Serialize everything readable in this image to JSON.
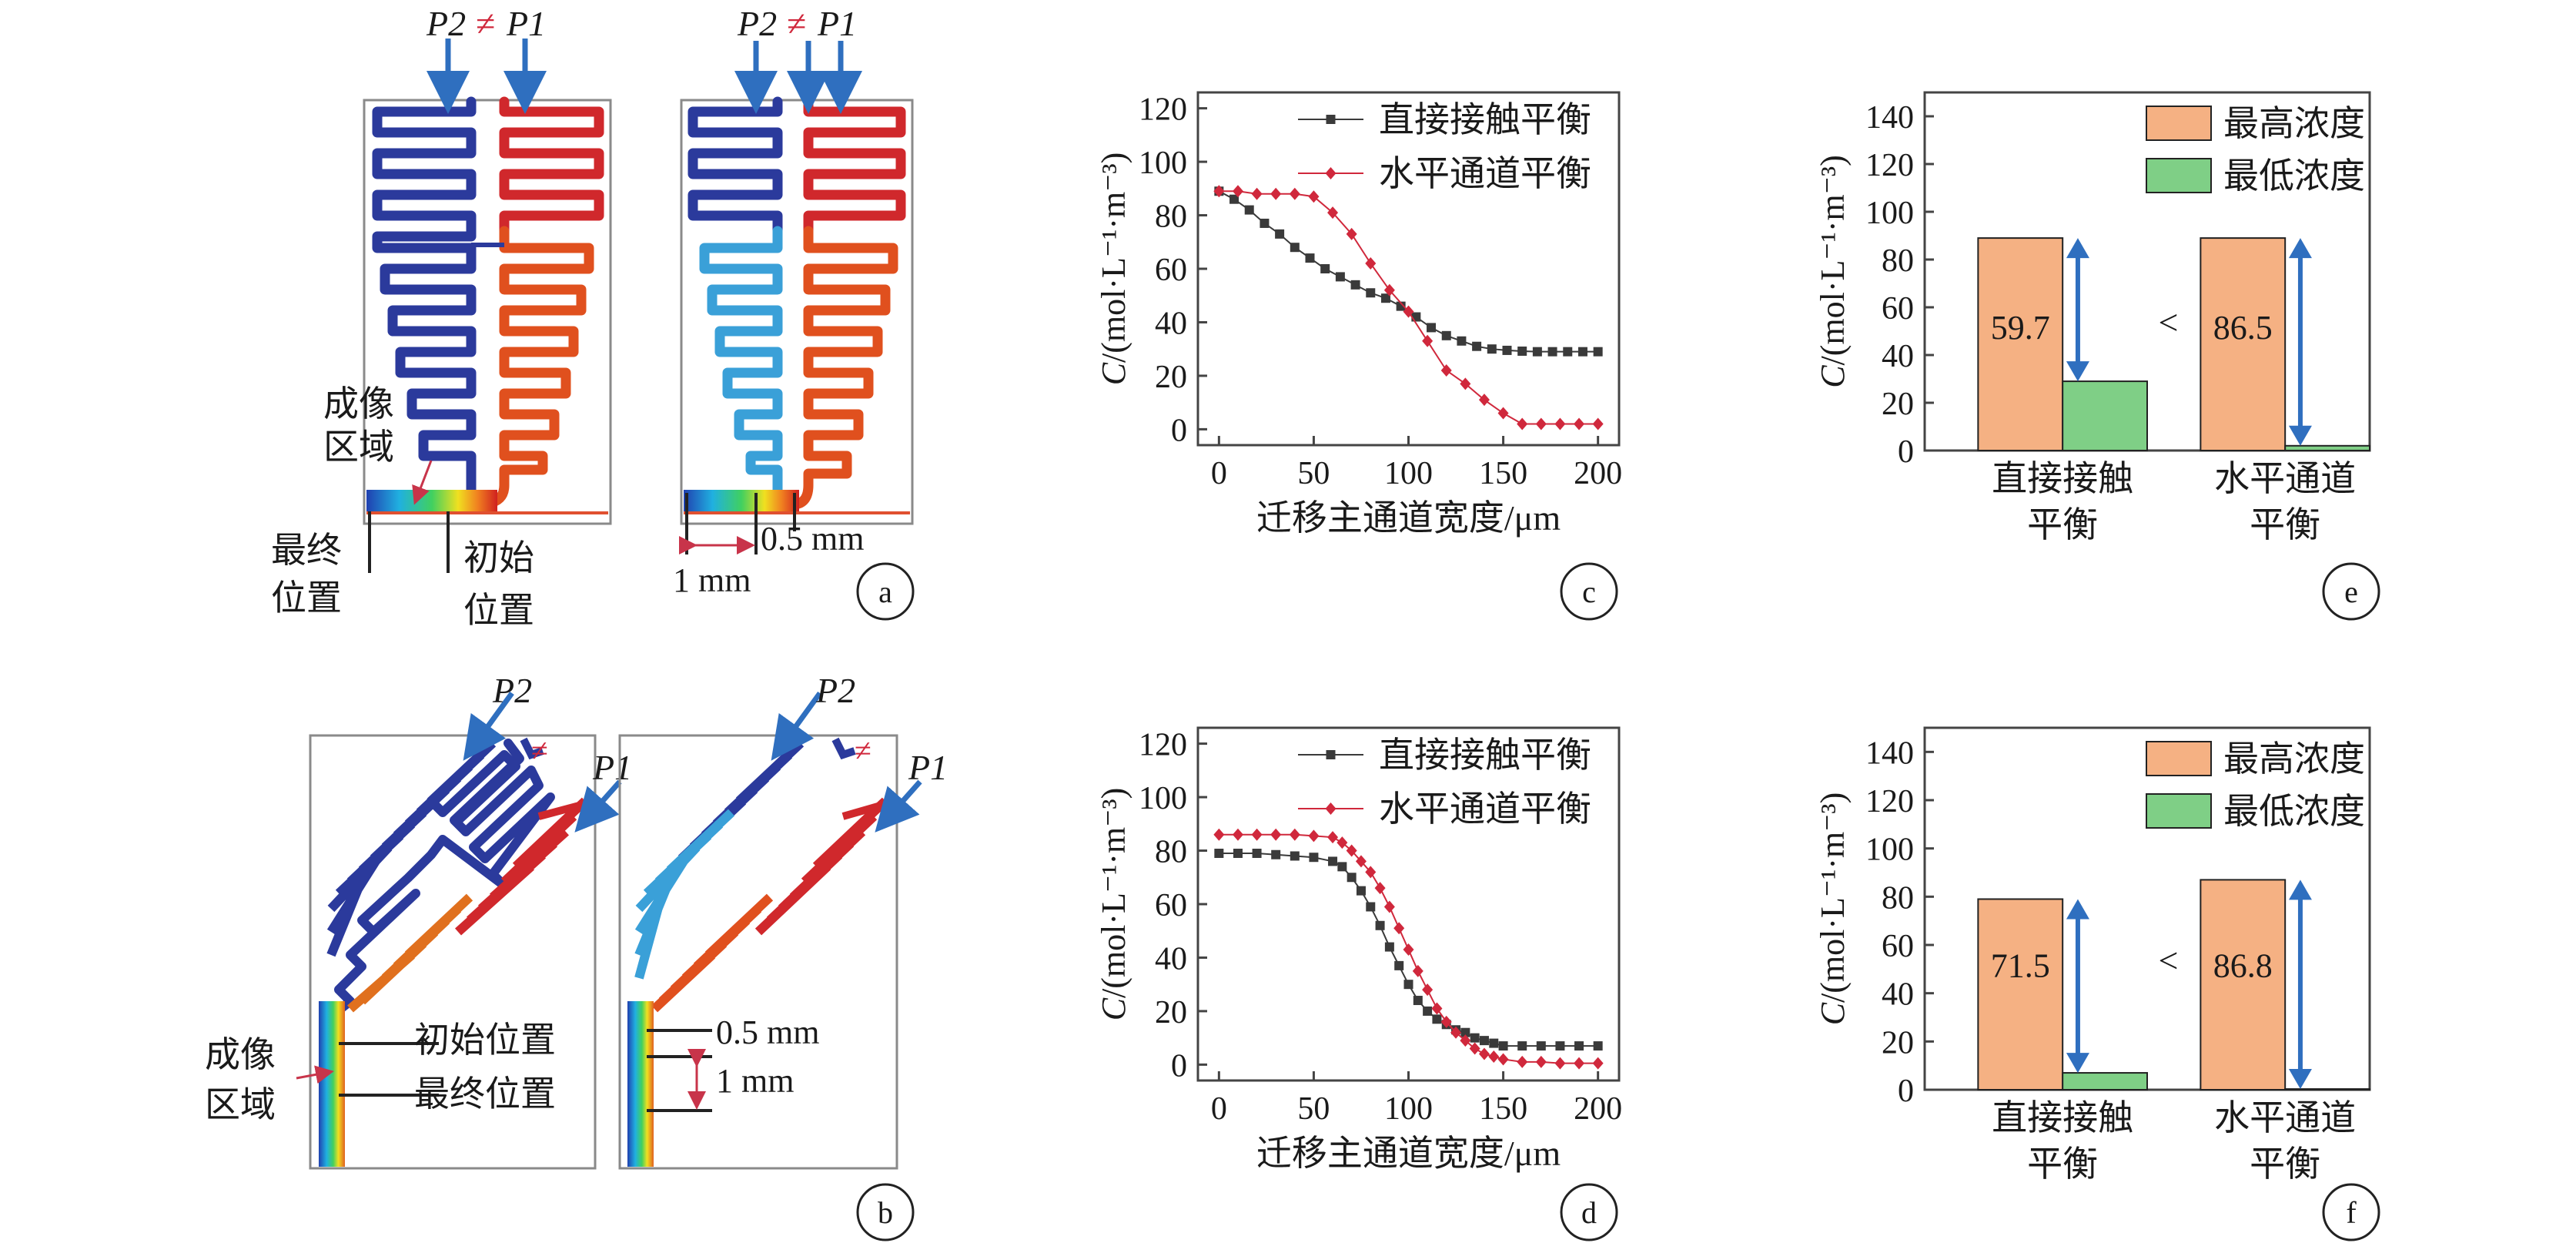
{
  "panels": {
    "a": {
      "letter": "a",
      "left": {
        "top": {
          "p2": "P2",
          "neq": "≠",
          "p1": "P1"
        },
        "imaging_region": [
          "成像",
          "区域"
        ],
        "final_position": [
          "最终",
          "位置"
        ],
        "initial_position": [
          "初始",
          "位置"
        ]
      },
      "right": {
        "top": {
          "p2": "P2",
          "neq": "≠",
          "p1": "P1"
        },
        "dim_small": "0.5 mm",
        "dim_large": "1 mm"
      }
    },
    "b": {
      "letter": "b",
      "left": {
        "p2": "P2",
        "neq": "≠",
        "p1": "P1",
        "imaging_region": [
          "成像",
          "区域"
        ],
        "initial_position": "初始位置",
        "final_position": "最终位置"
      },
      "right": {
        "p2": "P2",
        "neq": "≠",
        "p1": "P1",
        "dim_small": "0.5 mm",
        "dim_large": "1 mm"
      }
    },
    "c": {
      "letter": "c"
    },
    "d": {
      "letter": "d"
    },
    "e": {
      "letter": "e"
    },
    "f": {
      "letter": "f"
    }
  },
  "colors": {
    "series_direct": "#3a3a3a",
    "series_horizontal": "#d0283c",
    "bar_max": "#f5b183",
    "bar_min": "#7fcf86",
    "arrow": "#2f6fbf",
    "channel_blue": "#2b3a9c",
    "channel_red": "#d0282c",
    "dim_red": "#c8344a"
  },
  "chart_data": [
    {
      "panel": "c",
      "type": "line",
      "xlabel": "迁移主通道宽度/μm",
      "ylabel_var": "C",
      "ylabel_unit": "/(mol·L⁻¹·m⁻³)",
      "xlim": [
        0,
        200
      ],
      "ylim": [
        0,
        120
      ],
      "xticks": [
        0,
        50,
        100,
        150,
        200
      ],
      "yticks": [
        0,
        20,
        40,
        60,
        80,
        100,
        120
      ],
      "legend_position": "top-right",
      "series": [
        {
          "name": "直接接触平衡",
          "marker": "square",
          "color": "#3a3a3a",
          "x": [
            0,
            8,
            16,
            24,
            32,
            40,
            48,
            56,
            64,
            72,
            80,
            88,
            96,
            104,
            112,
            120,
            128,
            136,
            144,
            152,
            160,
            168,
            176,
            184,
            192,
            200
          ],
          "y": [
            89,
            86,
            82,
            77,
            73,
            68,
            64,
            60,
            57,
            54,
            51,
            49,
            46,
            42,
            38,
            35,
            33,
            31,
            30,
            29.5,
            29.2,
            29,
            29,
            29,
            29,
            29
          ]
        },
        {
          "name": "水平通道平衡",
          "marker": "diamond",
          "color": "#d0283c",
          "x": [
            0,
            10,
            20,
            30,
            40,
            50,
            60,
            70,
            80,
            90,
            100,
            110,
            120,
            130,
            140,
            150,
            160,
            170,
            180,
            190,
            200
          ],
          "y": [
            89,
            89,
            88,
            88,
            88,
            87,
            81,
            73,
            62,
            52,
            44,
            33,
            22,
            17,
            11,
            6,
            2,
            2,
            2,
            2,
            2
          ]
        }
      ]
    },
    {
      "panel": "d",
      "type": "line",
      "xlabel": "迁移主通道宽度/μm",
      "ylabel_var": "C",
      "ylabel_unit": "/(mol·L⁻¹·m⁻³)",
      "xlim": [
        0,
        200
      ],
      "ylim": [
        0,
        120
      ],
      "xticks": [
        0,
        50,
        100,
        150,
        200
      ],
      "yticks": [
        0,
        20,
        40,
        60,
        80,
        100,
        120
      ],
      "legend_position": "top-right",
      "series": [
        {
          "name": "直接接触平衡",
          "marker": "square",
          "color": "#3a3a3a",
          "x": [
            0,
            10,
            20,
            30,
            40,
            50,
            60,
            65,
            70,
            75,
            80,
            85,
            90,
            95,
            100,
            105,
            110,
            115,
            120,
            125,
            130,
            135,
            140,
            145,
            150,
            160,
            170,
            180,
            190,
            200
          ],
          "y": [
            79,
            79,
            79,
            78.5,
            78,
            77.5,
            76,
            74,
            70,
            65,
            59,
            52,
            44,
            37,
            30,
            24,
            20,
            17,
            15,
            13,
            12,
            10,
            9,
            8,
            7,
            7,
            7,
            7,
            7,
            7
          ]
        },
        {
          "name": "水平通道平衡",
          "marker": "diamond",
          "color": "#d0283c",
          "x": [
            0,
            10,
            20,
            30,
            40,
            50,
            60,
            65,
            70,
            75,
            80,
            85,
            90,
            95,
            100,
            105,
            110,
            115,
            120,
            125,
            130,
            135,
            140,
            145,
            150,
            160,
            170,
            180,
            190,
            200
          ],
          "y": [
            86,
            86,
            86,
            86,
            86,
            85.5,
            85,
            83,
            80,
            76,
            72,
            66,
            59,
            51,
            43,
            35,
            28,
            21,
            16,
            12,
            9,
            6,
            4,
            3,
            2,
            1,
            1,
            0.5,
            0.5,
            0.5
          ]
        }
      ]
    },
    {
      "panel": "e",
      "type": "bar",
      "ylabel_var": "C",
      "ylabel_unit": "/(mol·L⁻¹·m⁻³)",
      "ylim": [
        0,
        150
      ],
      "yticks": [
        0,
        20,
        40,
        60,
        80,
        100,
        120,
        140
      ],
      "categories": [
        [
          "直接接触",
          "平衡"
        ],
        [
          "水平通道",
          "平衡"
        ]
      ],
      "legend_position": "top-right",
      "series": [
        {
          "name": "最高浓度",
          "color": "#f5b183",
          "values": [
            89,
            89
          ]
        },
        {
          "name": "最低浓度",
          "color": "#7fcf86",
          "values": [
            29,
            2
          ]
        }
      ],
      "difference_labels": [
        "59.7",
        "86.5"
      ],
      "comparison": "<"
    },
    {
      "panel": "f",
      "type": "bar",
      "ylabel_var": "C",
      "ylabel_unit": "/(mol·L⁻¹·m⁻³)",
      "ylim": [
        0,
        150
      ],
      "yticks": [
        0,
        20,
        40,
        60,
        80,
        100,
        120,
        140
      ],
      "categories": [
        [
          "直接接触",
          "平衡"
        ],
        [
          "水平通道",
          "平衡"
        ]
      ],
      "legend_position": "top-right",
      "series": [
        {
          "name": "最高浓度",
          "color": "#f5b183",
          "values": [
            79,
            87
          ]
        },
        {
          "name": "最低浓度",
          "color": "#7fcf86",
          "values": [
            7,
            0.3
          ]
        }
      ],
      "difference_labels": [
        "71.5",
        "86.8"
      ],
      "comparison": "<"
    }
  ]
}
